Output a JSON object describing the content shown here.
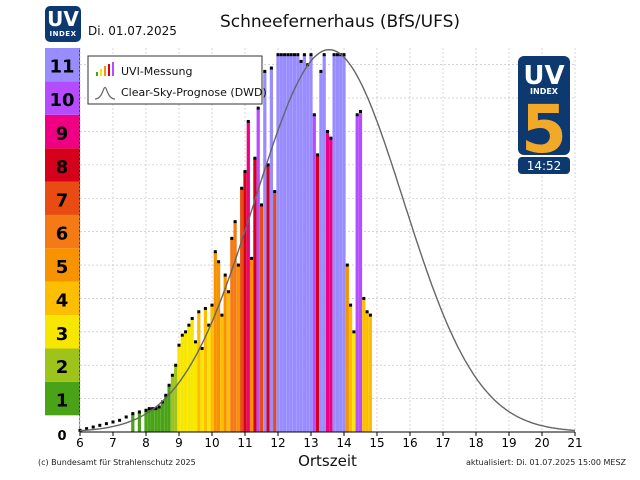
{
  "header": {
    "title": "Schneefernerhaus (BfS/UFS)",
    "date": "Di. 01.07.2025",
    "logo_uv": "UV",
    "logo_index": "INDEX"
  },
  "badge": {
    "uv": "UV",
    "index": "INDEX",
    "value": "5",
    "time": "14:52",
    "color": "#0d3870",
    "digit_color": "#f3a928"
  },
  "legend": {
    "measurement": "UVI-Messung",
    "forecast": "Clear-Sky-Prognose (DWD)"
  },
  "footer": {
    "left": "(c) Bundesamt für Strahlenschutz 2025",
    "right": "aktualisiert: Di. 01.07.2025  15:00  MESZ"
  },
  "chart_data": {
    "type": "bar",
    "title": "Schneefernerhaus (BfS/UFS)",
    "xlabel": "Ortszeit",
    "ylabel": "",
    "xlim": [
      6,
      21
    ],
    "ylim": [
      0,
      11.5
    ],
    "x_ticks": [
      "6",
      "7",
      "8",
      "9",
      "10",
      "11",
      "12",
      "13",
      "14",
      "15",
      "16",
      "17",
      "18",
      "19",
      "20",
      "21"
    ],
    "uvi_scale": [
      {
        "level": "0",
        "color": "#ffffff"
      },
      {
        "level": "1",
        "color": "#4aa317"
      },
      {
        "level": "2",
        "color": "#9ec41c"
      },
      {
        "level": "3",
        "color": "#f6e600"
      },
      {
        "level": "4",
        "color": "#fbbe00"
      },
      {
        "level": "5",
        "color": "#f89300"
      },
      {
        "level": "6",
        "color": "#f47a16"
      },
      {
        "level": "7",
        "color": "#e84c12"
      },
      {
        "level": "8",
        "color": "#d5001c"
      },
      {
        "level": "9",
        "color": "#ef0082"
      },
      {
        "level": "10",
        "color": "#b54cff"
      },
      {
        "level": "11",
        "color": "#998cff"
      }
    ],
    "grid": true,
    "series": [
      {
        "name": "UVI-Messung",
        "type": "bar",
        "points": [
          [
            6.0,
            0.05
          ],
          [
            6.2,
            0.1
          ],
          [
            6.4,
            0.15
          ],
          [
            6.6,
            0.2
          ],
          [
            6.8,
            0.25
          ],
          [
            7.0,
            0.3
          ],
          [
            7.2,
            0.35
          ],
          [
            7.4,
            0.45
          ],
          [
            7.6,
            0.55
          ],
          [
            7.8,
            0.6
          ],
          [
            8.0,
            0.65
          ],
          [
            8.1,
            0.7
          ],
          [
            8.2,
            0.7
          ],
          [
            8.3,
            0.7
          ],
          [
            8.4,
            0.75
          ],
          [
            8.5,
            0.9
          ],
          [
            8.6,
            1.1
          ],
          [
            8.7,
            1.4
          ],
          [
            8.8,
            1.7
          ],
          [
            8.9,
            2.0
          ],
          [
            9.0,
            2.6
          ],
          [
            9.1,
            2.9
          ],
          [
            9.2,
            3.0
          ],
          [
            9.3,
            3.2
          ],
          [
            9.4,
            3.4
          ],
          [
            9.5,
            2.7
          ],
          [
            9.6,
            3.6
          ],
          [
            9.7,
            2.5
          ],
          [
            9.8,
            3.7
          ],
          [
            9.9,
            3.2
          ],
          [
            10.0,
            3.8
          ],
          [
            10.1,
            5.4
          ],
          [
            10.2,
            5.1
          ],
          [
            10.3,
            3.5
          ],
          [
            10.4,
            4.7
          ],
          [
            10.5,
            4.2
          ],
          [
            10.6,
            5.8
          ],
          [
            10.7,
            6.3
          ],
          [
            10.8,
            5.0
          ],
          [
            10.9,
            7.3
          ],
          [
            11.0,
            7.8
          ],
          [
            11.1,
            9.3
          ],
          [
            11.2,
            5.2
          ],
          [
            11.3,
            8.2
          ],
          [
            11.4,
            9.7
          ],
          [
            11.5,
            6.8
          ],
          [
            11.6,
            10.8
          ],
          [
            11.7,
            8.0
          ],
          [
            11.8,
            10.9
          ],
          [
            11.9,
            7.2
          ],
          [
            12.0,
            11.3
          ],
          [
            12.1,
            11.3
          ],
          [
            12.2,
            11.3
          ],
          [
            12.3,
            11.3
          ],
          [
            12.4,
            11.3
          ],
          [
            12.5,
            11.3
          ],
          [
            12.6,
            11.3
          ],
          [
            12.7,
            11.1
          ],
          [
            12.8,
            11.3
          ],
          [
            12.9,
            11.0
          ],
          [
            13.0,
            11.3
          ],
          [
            13.1,
            9.5
          ],
          [
            13.2,
            8.3
          ],
          [
            13.3,
            10.8
          ],
          [
            13.4,
            11.3
          ],
          [
            13.5,
            9.0
          ],
          [
            13.6,
            8.8
          ],
          [
            13.7,
            11.3
          ],
          [
            13.8,
            11.3
          ],
          [
            13.9,
            11.3
          ],
          [
            14.0,
            11.3
          ],
          [
            14.1,
            5.0
          ],
          [
            14.2,
            3.8
          ],
          [
            14.3,
            3.0
          ],
          [
            14.4,
            9.5
          ],
          [
            14.5,
            9.6
          ],
          [
            14.6,
            4.0
          ],
          [
            14.7,
            3.6
          ],
          [
            14.8,
            3.5
          ]
        ]
      },
      {
        "name": "Clear-Sky-Prognose (DWD)",
        "type": "line",
        "mu": 13.55,
        "sigma": 2.25,
        "peak": 11.45
      }
    ]
  }
}
